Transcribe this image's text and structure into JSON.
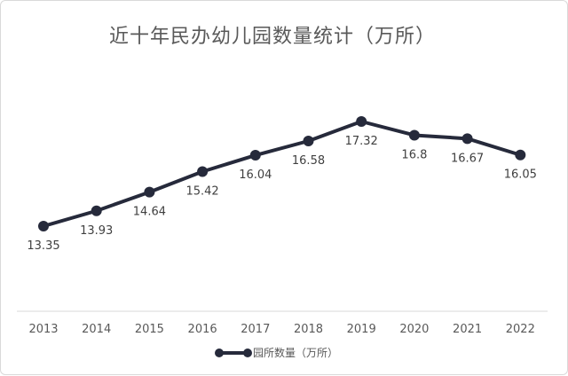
{
  "chart_data": {
    "type": "line",
    "title": "近十年民办幼儿园数量统计（万所）",
    "categories": [
      "2013",
      "2014",
      "2015",
      "2016",
      "2017",
      "2018",
      "2019",
      "2020",
      "2021",
      "2022"
    ],
    "series": [
      {
        "name": "园所数量（万所）",
        "values": [
          13.35,
          13.93,
          14.64,
          15.42,
          16.04,
          16.58,
          17.32,
          16.8,
          16.67,
          16.05
        ],
        "labels": [
          "13.35",
          "13.93",
          "14.64",
          "15.42",
          "16.04",
          "16.58",
          "17.32",
          "16.8",
          "16.67",
          "16.05"
        ]
      }
    ],
    "xlabel": "",
    "ylabel": "",
    "grid": false,
    "legend_position": "bottom",
    "colors": {
      "series": "#262a3b",
      "axis": "#d9d9d9",
      "text": "#595959"
    }
  }
}
